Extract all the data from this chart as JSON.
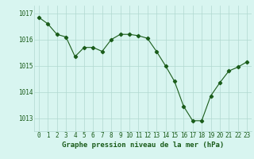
{
  "x": [
    0,
    1,
    2,
    3,
    4,
    5,
    6,
    7,
    8,
    9,
    10,
    11,
    12,
    13,
    14,
    15,
    16,
    17,
    18,
    19,
    20,
    21,
    22,
    23
  ],
  "y": [
    1016.85,
    1016.6,
    1016.2,
    1016.1,
    1015.35,
    1015.7,
    1015.7,
    1015.55,
    1016.0,
    1016.2,
    1016.2,
    1016.15,
    1016.05,
    1015.55,
    1015.0,
    1014.4,
    1013.45,
    1012.9,
    1012.9,
    1013.85,
    1014.35,
    1014.8,
    1014.95,
    1015.15
  ],
  "line_color": "#1a5c1a",
  "marker": "D",
  "marker_size": 2.2,
  "bg_color": "#d8f5f0",
  "grid_color": "#b0d8d0",
  "xlabel": "Graphe pression niveau de la mer (hPa)",
  "xlabel_color": "#1a5c1a",
  "xlabel_fontsize": 6.5,
  "tick_color": "#1a5c1a",
  "tick_fontsize": 5.5,
  "ylim": [
    1012.5,
    1017.3
  ],
  "yticks": [
    1013,
    1014,
    1015,
    1016,
    1017
  ],
  "xticks": [
    0,
    1,
    2,
    3,
    4,
    5,
    6,
    7,
    8,
    9,
    10,
    11,
    12,
    13,
    14,
    15,
    16,
    17,
    18,
    19,
    20,
    21,
    22,
    23
  ]
}
